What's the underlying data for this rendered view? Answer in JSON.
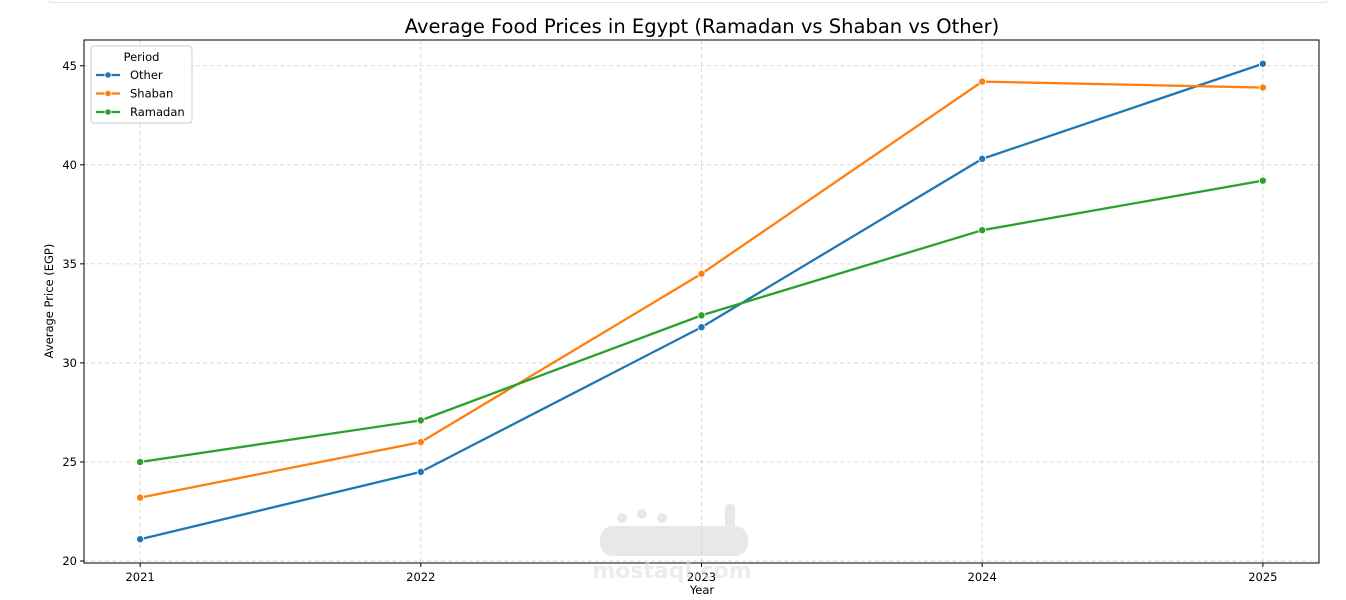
{
  "chart_data": {
    "type": "line",
    "title": "Average Food Prices in Egypt (Ramadan vs Shaban vs Other)",
    "xlabel": "Year",
    "ylabel": "Average Price (EGP)",
    "x": [
      2021,
      2022,
      2023,
      2024,
      2025
    ],
    "x_tick_labels": [
      "2021",
      "2022",
      "2023",
      "2024",
      "2025"
    ],
    "y_ticks": [
      20,
      25,
      30,
      35,
      40,
      45
    ],
    "y_tick_labels": [
      "20",
      "25",
      "30",
      "35",
      "40",
      "45"
    ],
    "xlim": [
      2020.8,
      2025.2
    ],
    "ylim": [
      19.9,
      46.3
    ],
    "grid": true,
    "legend": {
      "title": "Period",
      "placement": "top-left"
    },
    "series": [
      {
        "name": "Other",
        "color": "#1f77b4",
        "values": [
          21.1,
          24.5,
          31.8,
          40.3,
          45.1
        ]
      },
      {
        "name": "Shaban",
        "color": "#ff7f0e",
        "values": [
          23.2,
          26.0,
          34.5,
          44.2,
          43.9
        ]
      },
      {
        "name": "Ramadan",
        "color": "#2ca02c",
        "values": [
          25.0,
          27.1,
          32.4,
          36.7,
          39.2
        ]
      }
    ],
    "watermark": "mostaql.com"
  }
}
